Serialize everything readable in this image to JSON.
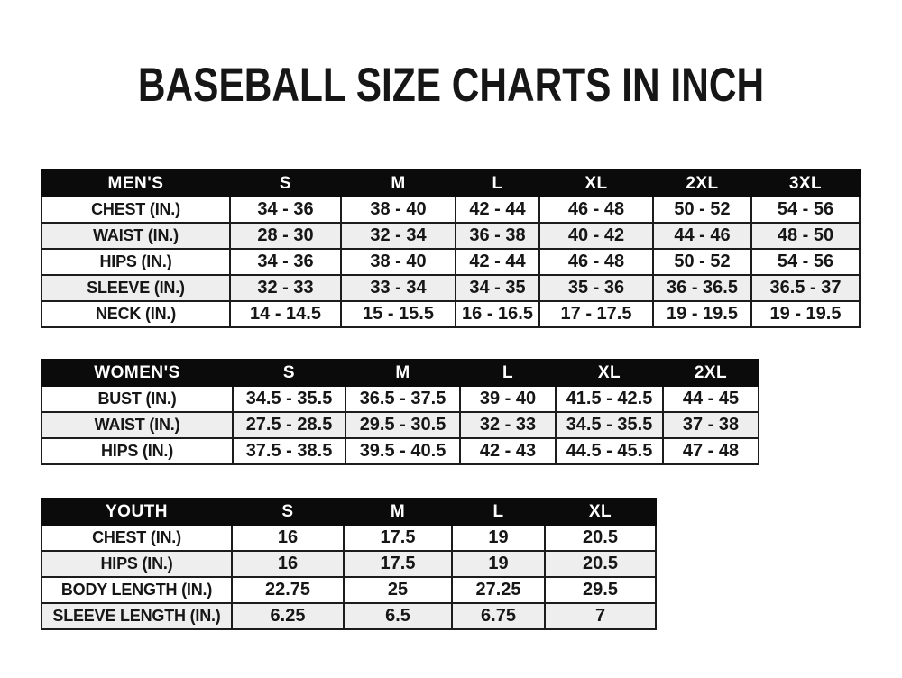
{
  "title": "BASEBALL SIZE CHARTS IN INCH",
  "colors": {
    "page_bg": "#ffffff",
    "header_bg": "#0b0b0b",
    "header_text": "#ffffff",
    "row_bg": "#ffffff",
    "row_alt_bg": "#eeeeee",
    "border": "#1c1c1c",
    "text": "#161616"
  },
  "chart_data": [
    {
      "type": "table",
      "name": "mens",
      "title": "MEN'S",
      "columns": [
        "MEN'S",
        "S",
        "M",
        "L",
        "XL",
        "2XL",
        "3XL"
      ],
      "rows": [
        [
          "CHEST (IN.)",
          "34 - 36",
          "38 - 40",
          "42 - 44",
          "46 - 48",
          "50 - 52",
          "54 - 56"
        ],
        [
          "WAIST (IN.)",
          "28 - 30",
          "32 - 34",
          "36 - 38",
          "40 - 42",
          "44 - 46",
          "48 - 50"
        ],
        [
          "HIPS (IN.)",
          "34 - 36",
          "38 - 40",
          "42 - 44",
          "46 - 48",
          "50 - 52",
          "54 - 56"
        ],
        [
          "SLEEVE (IN.)",
          "32 - 33",
          "33 - 34",
          "34 - 35",
          "35 - 36",
          "36 - 36.5",
          "36.5 - 37"
        ],
        [
          "NECK (IN.)",
          "14 - 14.5",
          "15 - 15.5",
          "16 - 16.5",
          "17 - 17.5",
          "19 - 19.5",
          "19 - 19.5"
        ]
      ]
    },
    {
      "type": "table",
      "name": "womens",
      "title": "WOMEN'S",
      "columns": [
        "WOMEN'S",
        "S",
        "M",
        "L",
        "XL",
        "2XL"
      ],
      "rows": [
        [
          "BUST (IN.)",
          "34.5 - 35.5",
          "36.5 - 37.5",
          "39 - 40",
          "41.5 - 42.5",
          "44 - 45"
        ],
        [
          "WAIST (IN.)",
          "27.5 - 28.5",
          "29.5 - 30.5",
          "32 - 33",
          "34.5 - 35.5",
          "37 - 38"
        ],
        [
          "HIPS (IN.)",
          "37.5 - 38.5",
          "39.5 - 40.5",
          "42 - 43",
          "44.5 - 45.5",
          "47 - 48"
        ]
      ]
    },
    {
      "type": "table",
      "name": "youth",
      "title": "YOUTH",
      "columns": [
        "YOUTH",
        "S",
        "M",
        "L",
        "XL"
      ],
      "rows": [
        [
          "CHEST (IN.)",
          "16",
          "17.5",
          "19",
          "20.5"
        ],
        [
          "HIPS (IN.)",
          "16",
          "17.5",
          "19",
          "20.5"
        ],
        [
          "BODY LENGTH (IN.)",
          "22.75",
          "25",
          "27.25",
          "29.5"
        ],
        [
          "SLEEVE LENGTH (IN.)",
          "6.25",
          "6.5",
          "6.75",
          "7"
        ]
      ]
    }
  ]
}
